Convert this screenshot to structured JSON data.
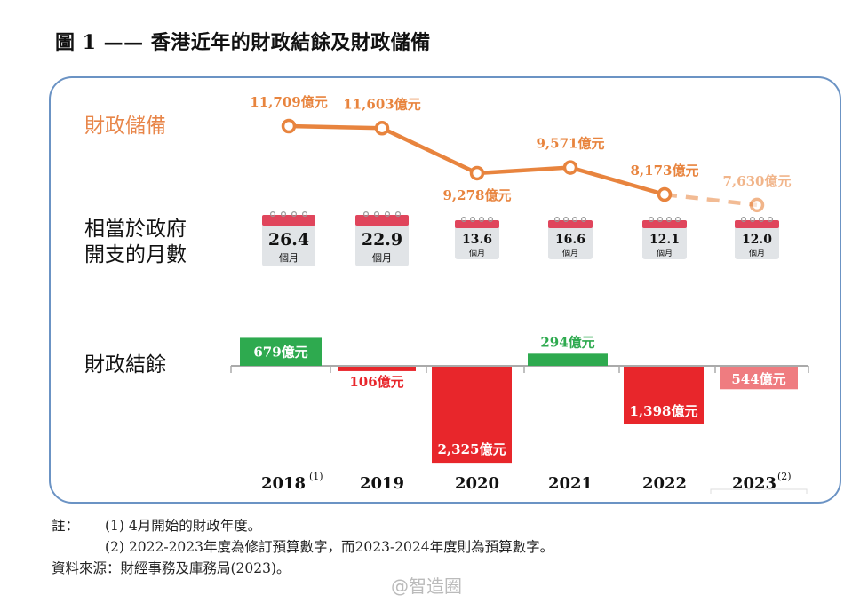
{
  "title": "圖 1 —— 香港近年的財政結餘及財政儲備",
  "row_labels": {
    "reserve": "財政儲備",
    "months_line1": "相當於政府",
    "months_line2": "開支的月數",
    "surplus": "財政結餘"
  },
  "unit": "億元",
  "months_unit": "個月",
  "colors": {
    "reserve": "#e8843e",
    "surplus_positive": "#2eaa4f",
    "deficit": "#e8262b",
    "deficit_estimate": "#ef7c80",
    "calendar_top": "#e0455c",
    "calendar_body": "#e1e4e7",
    "frame": "#6b93c4"
  },
  "chart_data": [
    {
      "type": "line",
      "title": "財政儲備",
      "categories": [
        "2018",
        "2019",
        "2020",
        "2021",
        "2022",
        "2023"
      ],
      "values": [
        11709,
        11603,
        9278,
        9571,
        8173,
        7630
      ],
      "labels": [
        "11,709億元",
        "11,603億元",
        "9,278億元",
        "9,571億元",
        "8,173億元",
        "7,630億元"
      ],
      "estimate_from_index": 5
    },
    {
      "type": "table",
      "title": "相當於政府開支的月數",
      "categories": [
        "2018",
        "2019",
        "2020",
        "2021",
        "2022",
        "2023"
      ],
      "values": [
        "26.4",
        "22.9",
        "13.6",
        "16.6",
        "12.1",
        "12.0"
      ]
    },
    {
      "type": "bar",
      "title": "財政結餘",
      "categories": [
        "2018",
        "2019",
        "2020",
        "2021",
        "2022",
        "2023"
      ],
      "category_labels": [
        {
          "year": "2018",
          "sup": "(1)"
        },
        {
          "year": "2019",
          "sup": ""
        },
        {
          "year": "2020",
          "sup": ""
        },
        {
          "year": "2021",
          "sup": ""
        },
        {
          "year": "2022",
          "sup": ""
        },
        {
          "year": "2023",
          "sup": "(2)"
        }
      ],
      "values": [
        679,
        -106,
        -2325,
        294,
        -1398,
        -544
      ],
      "labels": [
        "679億元",
        "106億元",
        "2,325億元",
        "294億元",
        "1,398億元",
        "544億元"
      ],
      "estimate_from_index": 5
    }
  ],
  "notes": {
    "label": "註：",
    "items": [
      "(1)  4月開始的財政年度。",
      "(2)  2022-2023年度為修訂預算數字，而2023-2024年度則為預算數字。"
    ],
    "source": "資料來源：財經事務及庫務局(2023)。"
  },
  "watermark": "@智造圈"
}
